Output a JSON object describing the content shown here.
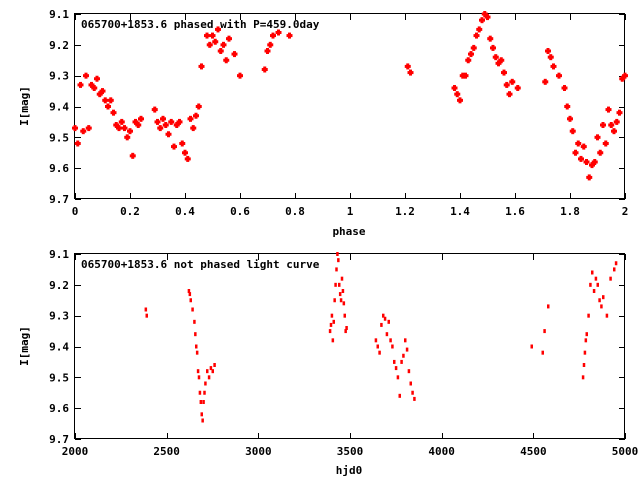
{
  "chart_data": [
    {
      "type": "scatter",
      "title": "065700+1853.6 phased with P=459.0day",
      "xlabel": "phase",
      "ylabel": "I[mag]",
      "xlim": [
        0,
        2
      ],
      "ylim": [
        9.1,
        9.7
      ],
      "y_inverted": true,
      "xticks": [
        "0",
        "0.2",
        "0.4",
        "0.6",
        "0.8",
        "1",
        "1.2",
        "1.4",
        "1.6",
        "1.8",
        "2"
      ],
      "yticks": [
        "9.1",
        "9.2",
        "9.3",
        "9.4",
        "9.5",
        "9.6",
        "9.7"
      ],
      "marker_color": "#ff0000",
      "marker": "plus",
      "grid": false,
      "series": [
        {
          "x": [
            0.0,
            0.01,
            0.02,
            0.03,
            0.04,
            0.05,
            0.06,
            0.07,
            0.08,
            0.09,
            0.1,
            0.11,
            0.12,
            0.13,
            0.14,
            0.15,
            0.16,
            0.17,
            0.18,
            0.19,
            0.2,
            0.21,
            0.22,
            0.23,
            0.24,
            0.29,
            0.3,
            0.31,
            0.32,
            0.33,
            0.34,
            0.35,
            0.36,
            0.37,
            0.38,
            0.39,
            0.4,
            0.41,
            0.42,
            0.43,
            0.44,
            0.45,
            0.46,
            0.48,
            0.49,
            0.5,
            0.51,
            0.52,
            0.53,
            0.54,
            0.55,
            0.56,
            0.58,
            0.6,
            0.69,
            0.7,
            0.71,
            0.72,
            0.74,
            0.78,
            1.21,
            1.22,
            1.38,
            1.39,
            1.4,
            1.41,
            1.42,
            1.43,
            1.44,
            1.45,
            1.46,
            1.47,
            1.48,
            1.49,
            1.5,
            1.51,
            1.52,
            1.53,
            1.54,
            1.55,
            1.56,
            1.57,
            1.58,
            1.59,
            1.61,
            1.71,
            1.72,
            1.73,
            1.74,
            1.76,
            1.78,
            1.79,
            1.8,
            1.81,
            1.82,
            1.83,
            1.84,
            1.85,
            1.86,
            1.87,
            1.88,
            1.89,
            1.9,
            1.91,
            1.92,
            1.93,
            1.94,
            1.95,
            1.96,
            1.97,
            1.98,
            1.99,
            2.0
          ],
          "y": [
            9.47,
            9.52,
            9.33,
            9.48,
            9.3,
            9.47,
            9.33,
            9.34,
            9.31,
            9.36,
            9.35,
            9.38,
            9.4,
            9.38,
            9.42,
            9.46,
            9.47,
            9.45,
            9.47,
            9.5,
            9.48,
            9.56,
            9.45,
            9.46,
            9.44,
            9.41,
            9.45,
            9.47,
            9.44,
            9.46,
            9.49,
            9.45,
            9.53,
            9.46,
            9.45,
            9.52,
            9.55,
            9.57,
            9.44,
            9.47,
            9.43,
            9.4,
            9.27,
            9.17,
            9.2,
            9.17,
            9.19,
            9.15,
            9.22,
            9.2,
            9.25,
            9.18,
            9.23,
            9.3,
            9.28,
            9.22,
            9.2,
            9.17,
            9.16,
            9.17,
            9.27,
            9.29,
            9.34,
            9.36,
            9.38,
            9.3,
            9.3,
            9.25,
            9.23,
            9.21,
            9.17,
            9.15,
            9.12,
            9.1,
            9.11,
            9.18,
            9.21,
            9.24,
            9.26,
            9.25,
            9.29,
            9.33,
            9.36,
            9.32,
            9.34,
            9.32,
            9.22,
            9.24,
            9.27,
            9.3,
            9.34,
            9.4,
            9.44,
            9.48,
            9.55,
            9.52,
            9.57,
            9.53,
            9.58,
            9.63,
            9.59,
            9.58,
            9.5,
            9.55,
            9.46,
            9.52,
            9.41,
            9.46,
            9.48,
            9.45,
            9.42,
            9.31,
            9.3
          ]
        }
      ]
    },
    {
      "type": "scatter",
      "title": "065700+1853.6 not phased light curve",
      "xlabel": "hjd0",
      "ylabel": "I[mag]",
      "xlim": [
        2000,
        5000
      ],
      "ylim": [
        9.1,
        9.7
      ],
      "y_inverted": true,
      "xticks": [
        "2000",
        "2500",
        "3000",
        "3500",
        "4000",
        "4500",
        "5000"
      ],
      "yticks": [
        "9.1",
        "9.2",
        "9.3",
        "9.4",
        "9.5",
        "9.6",
        "9.7"
      ],
      "marker_color": "#ff0000",
      "marker": "dot",
      "grid": false,
      "series": [
        {
          "x": [
            2385,
            2390,
            2620,
            2625,
            2630,
            2640,
            2650,
            2655,
            2660,
            2665,
            2670,
            2675,
            2680,
            2685,
            2690,
            2695,
            2700,
            2705,
            2710,
            2720,
            2730,
            2740,
            2750,
            2760,
            3390,
            3395,
            3400,
            3405,
            3410,
            3415,
            3420,
            3425,
            3430,
            3435,
            3440,
            3445,
            3450,
            3455,
            3460,
            3465,
            3470,
            3475,
            3480,
            3640,
            3650,
            3660,
            3670,
            3680,
            3690,
            3700,
            3710,
            3720,
            3730,
            3740,
            3750,
            3760,
            3770,
            3780,
            3790,
            3800,
            3810,
            3820,
            3830,
            3840,
            3850,
            4490,
            4550,
            4560,
            4580,
            4770,
            4775,
            4780,
            4785,
            4790,
            4800,
            4810,
            4820,
            4830,
            4840,
            4850,
            4860,
            4870,
            4880,
            4900,
            4920,
            4940,
            4950
          ],
          "y": [
            9.28,
            9.3,
            9.22,
            9.23,
            9.25,
            9.28,
            9.32,
            9.36,
            9.4,
            9.42,
            9.48,
            9.5,
            9.55,
            9.58,
            9.62,
            9.64,
            9.58,
            9.55,
            9.52,
            9.48,
            9.5,
            9.47,
            9.48,
            9.46,
            9.35,
            9.33,
            9.3,
            9.38,
            9.32,
            9.25,
            9.2,
            9.15,
            9.1,
            9.12,
            9.2,
            9.23,
            9.25,
            9.18,
            9.22,
            9.26,
            9.3,
            9.35,
            9.34,
            9.38,
            9.4,
            9.42,
            9.33,
            9.3,
            9.31,
            9.36,
            9.32,
            9.38,
            9.4,
            9.45,
            9.47,
            9.5,
            9.56,
            9.45,
            9.43,
            9.38,
            9.41,
            9.48,
            9.52,
            9.55,
            9.57,
            9.4,
            9.42,
            9.35,
            9.27,
            9.5,
            9.46,
            9.42,
            9.38,
            9.36,
            9.3,
            9.2,
            9.16,
            9.22,
            9.18,
            9.2,
            9.25,
            9.27,
            9.24,
            9.3,
            9.18,
            9.15,
            9.13
          ]
        }
      ]
    }
  ]
}
